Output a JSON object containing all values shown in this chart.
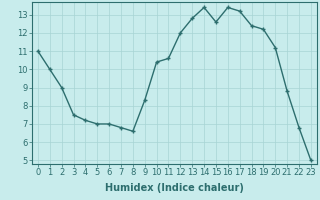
{
  "x": [
    0,
    1,
    2,
    3,
    4,
    5,
    6,
    7,
    8,
    9,
    10,
    11,
    12,
    13,
    14,
    15,
    16,
    17,
    18,
    19,
    20,
    21,
    22,
    23
  ],
  "y": [
    11,
    10,
    9,
    7.5,
    7.2,
    7,
    7,
    6.8,
    6.6,
    8.3,
    10.4,
    10.6,
    12,
    12.8,
    13.4,
    12.6,
    13.4,
    13.2,
    12.4,
    12.2,
    11.2,
    8.8,
    6.8,
    5
  ],
  "line_color": "#2d6e6e",
  "marker": "+",
  "markersize": 3,
  "linewidth": 1.0,
  "bg_color": "#c8ecec",
  "grid_color": "#a8d4d4",
  "xlabel": "Humidex (Indice chaleur)",
  "xlabel_fontsize": 7,
  "tick_fontsize": 6,
  "xlim": [
    -0.5,
    23.5
  ],
  "ylim": [
    4.8,
    13.7
  ],
  "yticks": [
    5,
    6,
    7,
    8,
    9,
    10,
    11,
    12,
    13
  ],
  "xticks": [
    0,
    1,
    2,
    3,
    4,
    5,
    6,
    7,
    8,
    9,
    10,
    11,
    12,
    13,
    14,
    15,
    16,
    17,
    18,
    19,
    20,
    21,
    22,
    23
  ]
}
